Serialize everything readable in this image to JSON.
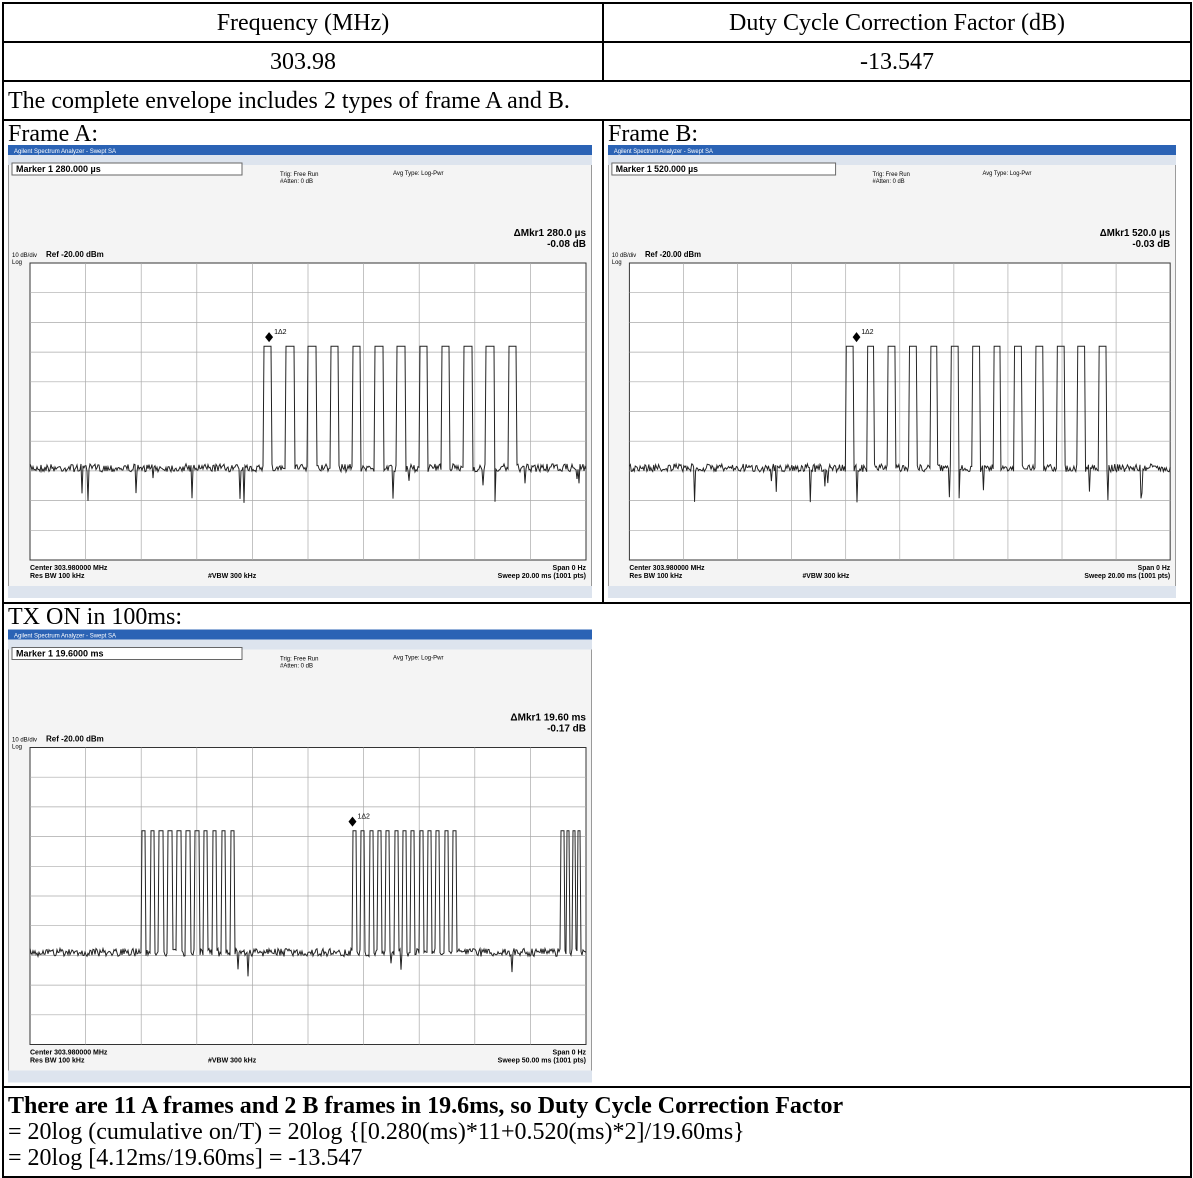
{
  "table": {
    "header": [
      "Frequency (MHz)",
      "Duty Cycle Correction Factor (dB)"
    ],
    "rows": [
      [
        "303.98",
        "-13.547"
      ]
    ]
  },
  "envelope_note": "The complete envelope includes 2 types of frame A and B.",
  "plots": [
    {
      "caption": "Frame A:",
      "title_bar": "Agilent Spectrum Analyzer - Swept SA",
      "marker": "Marker 1 280.000 µs",
      "trig": "Trig: Free Run",
      "atten": "#Atten: 0 dB",
      "avg": "Avg Type: Log-Pwr",
      "delta": "ΔMkr1 280.0 µs",
      "delta_db": "-0.08 dB",
      "scale": "10 dB/div",
      "ref": "Ref -20.00 dBm",
      "log": "Log",
      "marker_label": "1Δ2",
      "center": "Center 303.980000 MHz",
      "rbw": "Res BW 100 kHz",
      "vbw": "#VBW 300 kHz",
      "span": "Span 0 Hz",
      "sweep": "Sweep 20.00 ms (1001 pts)"
    },
    {
      "caption": "Frame B:",
      "title_bar": "Agilent Spectrum Analyzer - Swept SA",
      "marker": "Marker 1 520.000 µs",
      "trig": "Trig: Free Run",
      "atten": "#Atten: 0 dB",
      "avg": "Avg Type: Log-Pwr",
      "delta": "ΔMkr1 520.0 µs",
      "delta_db": "-0.03 dB",
      "scale": "10 dB/div",
      "ref": "Ref -20.00 dBm",
      "log": "Log",
      "marker_label": "1Δ2",
      "center": "Center 303.980000 MHz",
      "rbw": "Res BW 100 kHz",
      "vbw": "#VBW 300 kHz",
      "span": "Span 0 Hz",
      "sweep": "Sweep 20.00 ms (1001 pts)"
    },
    {
      "caption": "TX ON in 100ms:",
      "title_bar": "Agilent Spectrum Analyzer - Swept SA",
      "marker": "Marker 1 19.6000 ms",
      "trig": "Trig: Free Run",
      "atten": "#Atten: 0 dB",
      "avg": "Avg Type: Log-Pwr",
      "delta": "ΔMkr1 19.60 ms",
      "delta_db": "-0.17 dB",
      "scale": "10 dB/div",
      "ref": "Ref -20.00 dBm",
      "log": "Log",
      "marker_label": "1Δ2",
      "center": "Center 303.980000 MHz",
      "rbw": "Res BW 100 kHz",
      "vbw": "#VBW 300 kHz",
      "span": "Span 0 Hz",
      "sweep": "Sweep 50.00 ms (1001 pts)"
    }
  ],
  "conclusion": {
    "heading": "There are 11 A frames and 2 B frames in 19.6ms, so Duty Cycle Correction Factor",
    "lines": [
      "= 20log (cumulative on/T) = 20log {[0.280(ms)*11+0.520(ms)*2]/19.60ms}",
      "= 20log [4.12ms/19.60ms] = -13.547"
    ]
  }
}
